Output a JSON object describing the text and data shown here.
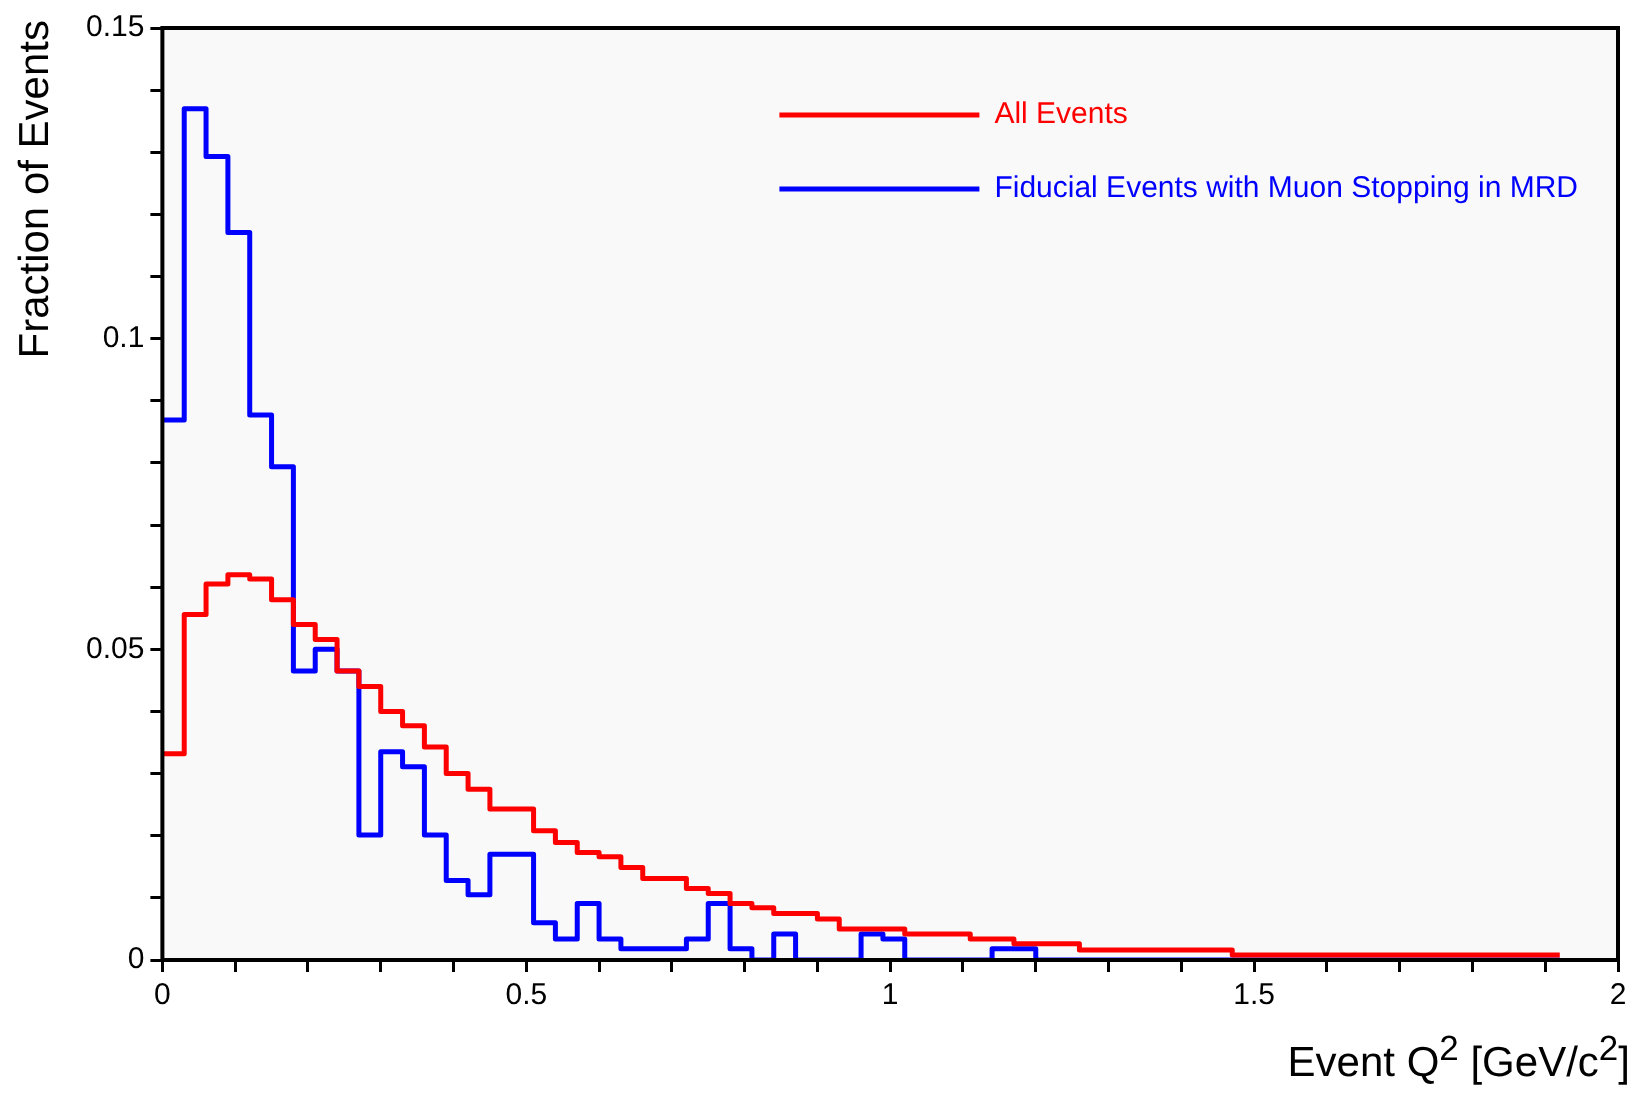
{
  "chart_data": {
    "type": "histogram",
    "xlabel": "Event Q$^{2}$ [GeV/c$^{2}$]",
    "ylabel": "Fraction of Events",
    "bins": [
      0,
      0.03,
      0.06,
      0.09,
      0.12,
      0.15,
      0.18,
      0.21,
      0.24,
      0.27,
      0.3,
      0.33,
      0.36,
      0.39,
      0.42,
      0.45,
      0.48,
      0.51,
      0.54,
      0.57,
      0.6,
      0.63,
      0.66,
      0.69,
      0.72,
      0.75,
      0.78,
      0.81,
      0.84,
      0.87,
      0.9,
      0.93,
      0.96,
      0.99,
      1.02,
      1.05,
      1.08,
      1.11,
      1.14,
      1.17,
      1.2,
      1.23,
      1.26,
      1.29,
      1.32,
      1.35,
      1.38,
      1.41,
      1.44,
      1.47,
      1.5,
      1.53,
      1.56,
      1.59,
      1.62,
      1.65,
      1.68,
      1.71,
      1.74,
      1.77,
      1.8,
      1.83,
      1.86,
      1.89,
      1.92
    ],
    "series": [
      {
        "name": "All Events",
        "color": "#ff0000",
        "values": [
          0.0332,
          0.0556,
          0.0605,
          0.062,
          0.0613,
          0.058,
          0.054,
          0.0516,
          0.0465,
          0.044,
          0.04,
          0.0377,
          0.0343,
          0.03,
          0.0275,
          0.0243,
          0.0243,
          0.0208,
          0.0189,
          0.0173,
          0.0166,
          0.0149,
          0.0131,
          0.0131,
          0.0115,
          0.0107,
          0.0091,
          0.0084,
          0.0075,
          0.0075,
          0.0066,
          0.005,
          0.005,
          0.005,
          0.0042,
          0.0042,
          0.0042,
          0.0034,
          0.0034,
          0.0026,
          0.0026,
          0.0026,
          0.0016,
          0.0016,
          0.0016,
          0.0016,
          0.0016,
          0.0016,
          0.0016,
          0.0008,
          0.0008,
          0.0008,
          0.0008,
          0.0008,
          0.0008,
          0.0008,
          0.0008,
          0.0008,
          0.0008,
          0.0008,
          0.0008,
          0.0008,
          0.0008,
          0.0008
        ]
      },
      {
        "name": "Fiducial Events with Muon Stopping in MRD",
        "color": "#0000ff",
        "values": [
          0.0869,
          0.137,
          0.1293,
          0.1171,
          0.0877,
          0.0794,
          0.0465,
          0.05,
          0.0465,
          0.0201,
          0.0335,
          0.0311,
          0.0201,
          0.0128,
          0.0105,
          0.017,
          0.017,
          0.006,
          0.0034,
          0.0091,
          0.0034,
          0.0018,
          0.0018,
          0.0018,
          0.0034,
          0.0091,
          0.0018,
          0,
          0.0042,
          0,
          0,
          0,
          0.0042,
          0.0034,
          0,
          0,
          0,
          0,
          0.0018,
          0.0018,
          0,
          0,
          0,
          0,
          0,
          0,
          0,
          0,
          0,
          0,
          0,
          0,
          0,
          0,
          0,
          0,
          0,
          0,
          0,
          0,
          0,
          0,
          0,
          0
        ]
      }
    ],
    "xlim": [
      0,
      2
    ],
    "xticks": [
      0,
      {
        "value": 0.1,
        "label": null
      },
      {
        "value": 0.2,
        "label": null
      },
      {
        "value": 0.3,
        "label": null
      },
      {
        "value": 0.4,
        "label": null
      },
      0.5,
      {
        "value": 0.6,
        "label": null
      },
      {
        "value": 0.7,
        "label": null
      },
      {
        "value": 0.8,
        "label": null
      },
      {
        "value": 0.9,
        "label": null
      },
      1,
      {
        "value": 1.1,
        "label": null
      },
      {
        "value": 1.2,
        "label": null
      },
      {
        "value": 1.3,
        "label": null
      },
      {
        "value": 1.4,
        "label": null
      },
      1.5,
      {
        "value": 1.6,
        "label": null
      },
      {
        "value": 1.7,
        "label": null
      },
      {
        "value": 1.8,
        "label": null
      },
      {
        "value": 1.9,
        "label": null
      },
      2
    ],
    "ylim": [
      0,
      0.15
    ],
    "yticks": [
      0,
      {
        "value": 0.01,
        "label": null
      },
      {
        "value": 0.02,
        "label": null
      },
      {
        "value": 0.03,
        "label": null
      },
      {
        "value": 0.04,
        "label": null
      },
      0.05,
      {
        "value": 0.06,
        "label": null
      },
      {
        "value": 0.07,
        "label": null
      },
      {
        "value": 0.08,
        "label": null
      },
      {
        "value": 0.09,
        "label": null
      },
      0.1,
      {
        "value": 0.11,
        "label": null
      },
      {
        "value": 0.12,
        "label": null
      },
      {
        "value": 0.13,
        "label": null
      },
      {
        "value": 0.14,
        "label": null
      },
      0.15
    ],
    "grid": false,
    "legend": "top right"
  }
}
